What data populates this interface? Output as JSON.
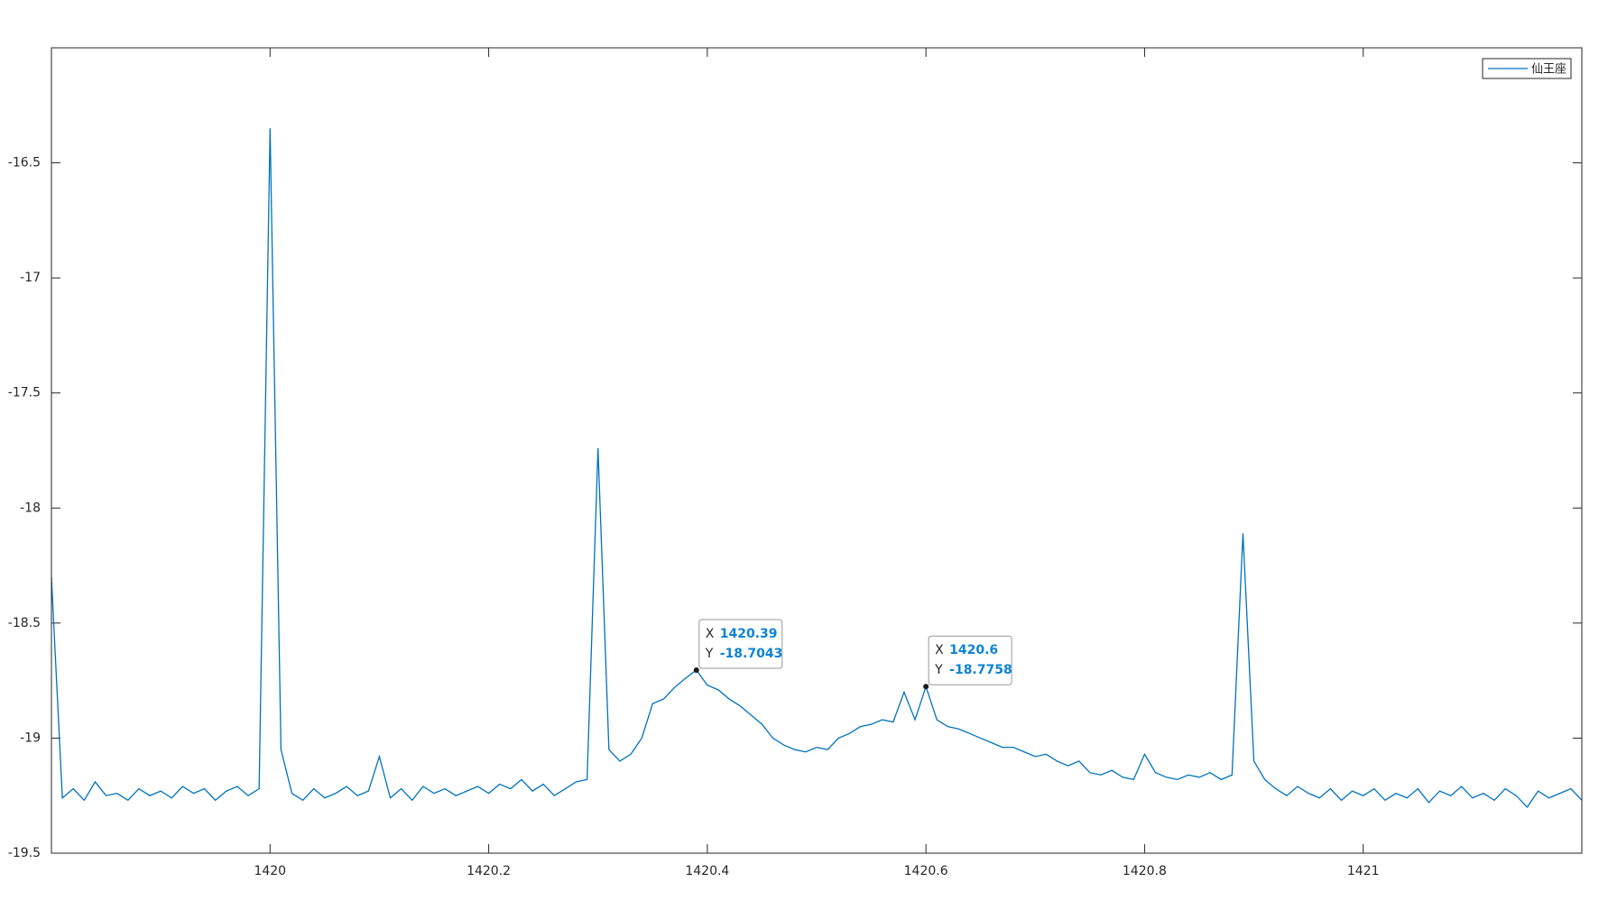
{
  "chart_data": {
    "type": "line",
    "x": [
      1419.8,
      1419.81,
      1419.82,
      1419.83,
      1419.84,
      1419.85,
      1419.86,
      1419.87,
      1419.88,
      1419.89,
      1419.9,
      1419.91,
      1419.92,
      1419.93,
      1419.94,
      1419.95,
      1419.96,
      1419.97,
      1419.98,
      1419.99,
      1420,
      1420.01,
      1420.02,
      1420.03,
      1420.04,
      1420.05,
      1420.06,
      1420.07,
      1420.08,
      1420.09,
      1420.1,
      1420.11,
      1420.12,
      1420.13,
      1420.14,
      1420.15,
      1420.16,
      1420.17,
      1420.18,
      1420.19,
      1420.2,
      1420.21,
      1420.22,
      1420.23,
      1420.24,
      1420.25,
      1420.26,
      1420.27,
      1420.28,
      1420.29,
      1420.3,
      1420.31,
      1420.32,
      1420.33,
      1420.34,
      1420.35,
      1420.36,
      1420.37,
      1420.38,
      1420.39,
      1420.4,
      1420.41,
      1420.42,
      1420.43,
      1420.44,
      1420.45,
      1420.46,
      1420.47,
      1420.48,
      1420.49,
      1420.5,
      1420.51,
      1420.52,
      1420.53,
      1420.54,
      1420.55,
      1420.56,
      1420.57,
      1420.58,
      1420.59,
      1420.6,
      1420.61,
      1420.62,
      1420.63,
      1420.64,
      1420.65,
      1420.66,
      1420.67,
      1420.68,
      1420.69,
      1420.7,
      1420.71,
      1420.72,
      1420.73,
      1420.74,
      1420.75,
      1420.76,
      1420.77,
      1420.78,
      1420.79,
      1420.8,
      1420.81,
      1420.82,
      1420.83,
      1420.84,
      1420.85,
      1420.86,
      1420.87,
      1420.88,
      1420.89,
      1420.9,
      1420.91,
      1420.92,
      1420.93,
      1420.94,
      1420.95,
      1420.96,
      1420.97,
      1420.98,
      1420.99,
      1421,
      1421.01,
      1421.02,
      1421.03,
      1421.04,
      1421.05,
      1421.06,
      1421.07,
      1421.08,
      1421.09,
      1421.1,
      1421.11,
      1421.12,
      1421.13,
      1421.14,
      1421.15,
      1421.16,
      1421.17,
      1421.18,
      1421.19,
      1421.2
    ],
    "series": [
      {
        "name": "仙王座",
        "color": "#0072bd",
        "values": [
          -18.3,
          -19.26,
          -19.22,
          -19.27,
          -19.19,
          -19.25,
          -19.24,
          -19.27,
          -19.22,
          -19.25,
          -19.23,
          -19.26,
          -19.21,
          -19.24,
          -19.22,
          -19.27,
          -19.23,
          -19.21,
          -19.25,
          -19.22,
          -16.35,
          -19.05,
          -19.24,
          -19.27,
          -19.22,
          -19.26,
          -19.24,
          -19.21,
          -19.25,
          -19.23,
          -19.08,
          -19.26,
          -19.22,
          -19.27,
          -19.21,
          -19.24,
          -19.22,
          -19.25,
          -19.23,
          -19.21,
          -19.24,
          -19.2,
          -19.22,
          -19.18,
          -19.23,
          -19.2,
          -19.25,
          -19.22,
          -19.19,
          -19.18,
          -17.74,
          -19.05,
          -19.1,
          -19.07,
          -19.0,
          -18.85,
          -18.83,
          -18.78,
          -18.74,
          -18.7043,
          -18.77,
          -18.79,
          -18.83,
          -18.86,
          -18.9,
          -18.94,
          -19.0,
          -19.03,
          -19.05,
          -19.06,
          -19.04,
          -19.05,
          -19.0,
          -18.98,
          -18.95,
          -18.94,
          -18.92,
          -18.93,
          -18.8,
          -18.92,
          -18.7758,
          -18.92,
          -18.95,
          -18.96,
          -18.98,
          -19.0,
          -19.02,
          -19.04,
          -19.04,
          -19.06,
          -19.08,
          -19.07,
          -19.1,
          -19.12,
          -19.1,
          -19.15,
          -19.16,
          -19.14,
          -19.17,
          -19.18,
          -19.07,
          -19.15,
          -19.17,
          -19.18,
          -19.16,
          -19.17,
          -19.15,
          -19.18,
          -19.16,
          -18.11,
          -19.1,
          -19.18,
          -19.22,
          -19.25,
          -19.21,
          -19.24,
          -19.26,
          -19.22,
          -19.27,
          -19.23,
          -19.25,
          -19.22,
          -19.27,
          -19.24,
          -19.26,
          -19.22,
          -19.28,
          -19.23,
          -19.25,
          -19.21,
          -19.26,
          -19.24,
          -19.27,
          -19.22,
          -19.25,
          -19.3,
          -19.23,
          -19.26,
          -19.24,
          -19.22,
          -19.27
        ]
      }
    ],
    "xlim": [
      1419.8,
      1421.2
    ],
    "xticks": [
      1420,
      1420.2,
      1420.4,
      1420.6,
      1420.8,
      1421
    ],
    "ylim": [
      -19.5,
      -16.0
    ],
    "yticks": [
      -19.5,
      -19,
      -18.5,
      -18,
      -17.5,
      -17,
      -16.5
    ],
    "grid": false,
    "legend": "northeast",
    "data_tips": [
      {
        "x_label": "X",
        "x": 1420.39,
        "y_label": "Y",
        "y": -18.7043
      },
      {
        "x_label": "X",
        "x": 1420.6,
        "y_label": "Y",
        "y": -18.7758
      }
    ]
  }
}
